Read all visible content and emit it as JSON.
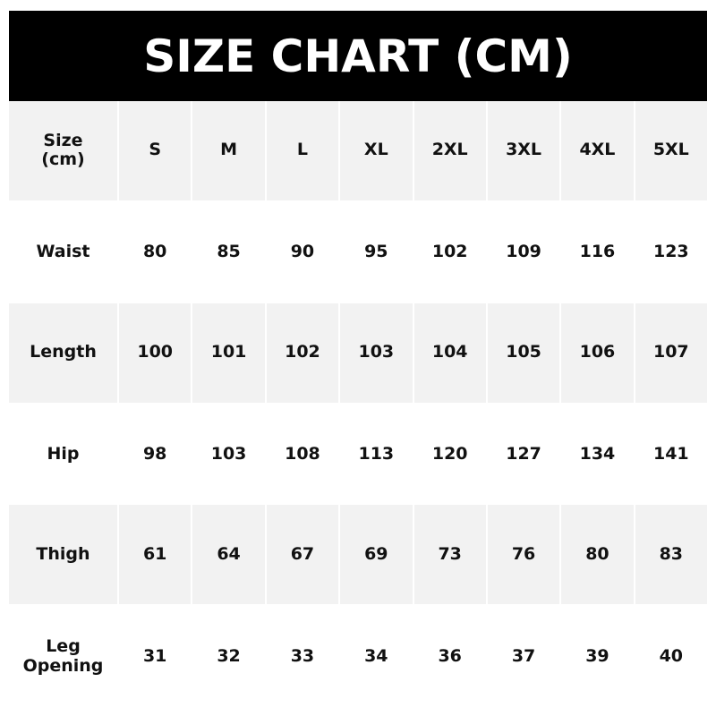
{
  "title": "SIZE CHART (CM)",
  "header": {
    "label_line1": "Size",
    "label_line2": "(cm)",
    "sizes": [
      "S",
      "M",
      "L",
      "XL",
      "2XL",
      "3XL",
      "4XL",
      "5XL"
    ]
  },
  "rows": [
    {
      "label": "Waist",
      "values": [
        "80",
        "85",
        "90",
        "95",
        "102",
        "109",
        "116",
        "123"
      ]
    },
    {
      "label": "Length",
      "values": [
        "100",
        "101",
        "102",
        "103",
        "104",
        "105",
        "106",
        "107"
      ]
    },
    {
      "label": "Hip",
      "values": [
        "98",
        "103",
        "108",
        "113",
        "120",
        "127",
        "134",
        "141"
      ]
    },
    {
      "label": "Thigh",
      "values": [
        "61",
        "64",
        "67",
        "69",
        "73",
        "76",
        "80",
        "83"
      ]
    },
    {
      "label": "Leg Opening",
      "values": [
        "31",
        "32",
        "33",
        "34",
        "36",
        "37",
        "39",
        "40"
      ]
    }
  ],
  "colors": {
    "title_bg": "#000000",
    "stripe": "#f2f2f2"
  }
}
